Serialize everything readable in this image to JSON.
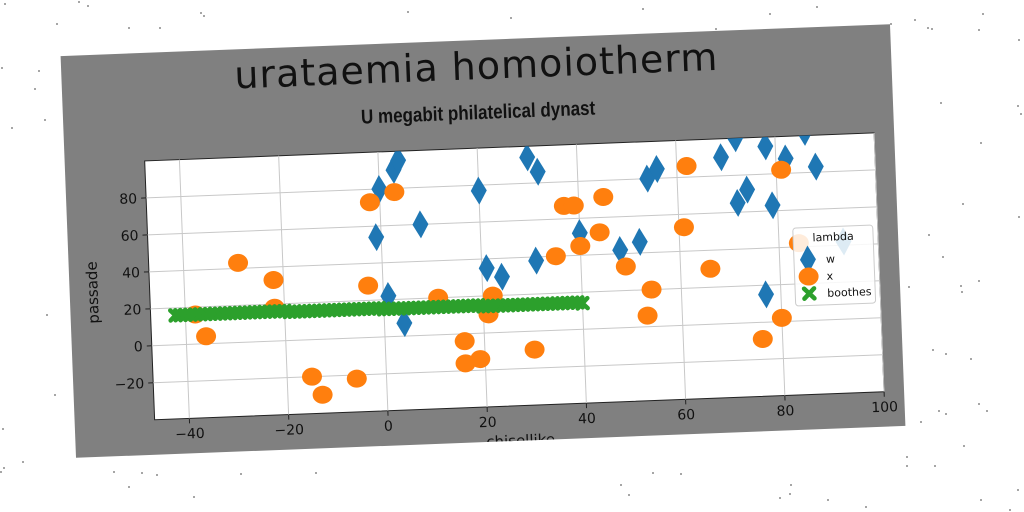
{
  "chart_data": {
    "type": "scatter",
    "title": "urataemia homoiotherm",
    "subtitle": "U megabit philatelical dynast",
    "xlabel": "chisellike",
    "ylabel": "passade",
    "xlim": [
      -47,
      100
    ],
    "ylim": [
      -40,
      100
    ],
    "xticks": [
      -40,
      -20,
      0,
      20,
      40,
      60,
      80,
      100
    ],
    "yticks": [
      -20,
      0,
      20,
      40,
      60,
      80
    ],
    "grid": true,
    "legend": {
      "title": "lambda",
      "position": "right"
    },
    "series": [
      {
        "name": "w",
        "marker": "diamond",
        "color": "#1f77b4",
        "x": [
          3,
          4,
          0,
          -1,
          8,
          20,
          21,
          24,
          30,
          32,
          40,
          48,
          52,
          54,
          56,
          69,
          72,
          74,
          72,
          77,
          78,
          79,
          82,
          86,
          88,
          93,
          31,
          1,
          4
        ],
        "y": [
          90,
          95,
          80,
          54,
          60,
          77,
          35,
          30,
          94,
          86,
          52,
          42,
          46,
          80,
          85,
          90,
          100,
          72,
          65,
          15,
          95,
          63,
          88,
          102,
          83,
          42,
          38,
          22,
          7
        ]
      },
      {
        "name": "x",
        "marker": "circle",
        "color": "#ff7f0e",
        "x": [
          -29,
          -22,
          -36,
          -15,
          -13,
          -6,
          -3,
          3,
          -2,
          11,
          16,
          16,
          19,
          22,
          21,
          30,
          35,
          37,
          39,
          40,
          44,
          45,
          49,
          53,
          54,
          61,
          62,
          66,
          76,
          80,
          81,
          84,
          -38,
          -22
        ],
        "y": [
          43,
          33,
          4,
          -20,
          -30,
          -22,
          28,
          78,
          73,
          20,
          -4,
          -16,
          -14,
          20,
          10,
          -10,
          40,
          67,
          67,
          45,
          52,
          71,
          33,
          6,
          20,
          53,
          86,
          30,
          -9,
          2,
          82,
          42,
          16,
          18
        ]
      },
      {
        "name": "boothes",
        "marker": "x",
        "color": "#2ca02c",
        "x": [
          -42,
          -41,
          -40,
          -39,
          -38,
          -37,
          -36,
          -35,
          -34,
          -33,
          -32,
          -31,
          -30,
          -29,
          -28,
          -27,
          -26,
          -25,
          -24,
          -23,
          -22,
          -21,
          -20,
          -19,
          -18,
          -17,
          -16,
          -15,
          -14,
          -13,
          -12,
          -11,
          -10,
          -9,
          -8,
          -7,
          -6,
          -5,
          -4,
          -3,
          -2,
          -1,
          0,
          1,
          2,
          3,
          4,
          5,
          6,
          7,
          8,
          9,
          10,
          11,
          12,
          13,
          14,
          15,
          16,
          17,
          18,
          19,
          20,
          21,
          22,
          23,
          24,
          25,
          26,
          27,
          28,
          29,
          30,
          31,
          32,
          33,
          34,
          35,
          36,
          37,
          38,
          39,
          40
        ],
        "y": [
          16,
          16,
          16,
          16,
          16,
          16,
          16,
          16,
          16,
          16,
          16,
          16,
          16,
          16,
          16,
          16,
          16,
          16,
          16,
          16,
          16,
          16,
          16,
          15.5,
          15.5,
          15.5,
          15.5,
          15.5,
          15.5,
          15.5,
          15.5,
          15.5,
          15.5,
          15.5,
          15.5,
          15.5,
          15.5,
          15.5,
          15.5,
          15.5,
          15.5,
          15.5,
          15,
          15,
          15,
          15,
          15,
          15,
          15,
          15,
          15,
          15,
          15,
          15,
          15,
          15,
          15,
          15,
          15,
          15,
          15,
          15,
          14.5,
          14.5,
          14.5,
          14.5,
          14.5,
          14.5,
          14.5,
          14.5,
          14.5,
          14.5,
          14.5,
          14.5,
          14.5,
          14.5,
          14.5,
          14.5,
          14.5,
          14.5,
          14.5,
          14.5,
          14
        ]
      }
    ]
  }
}
